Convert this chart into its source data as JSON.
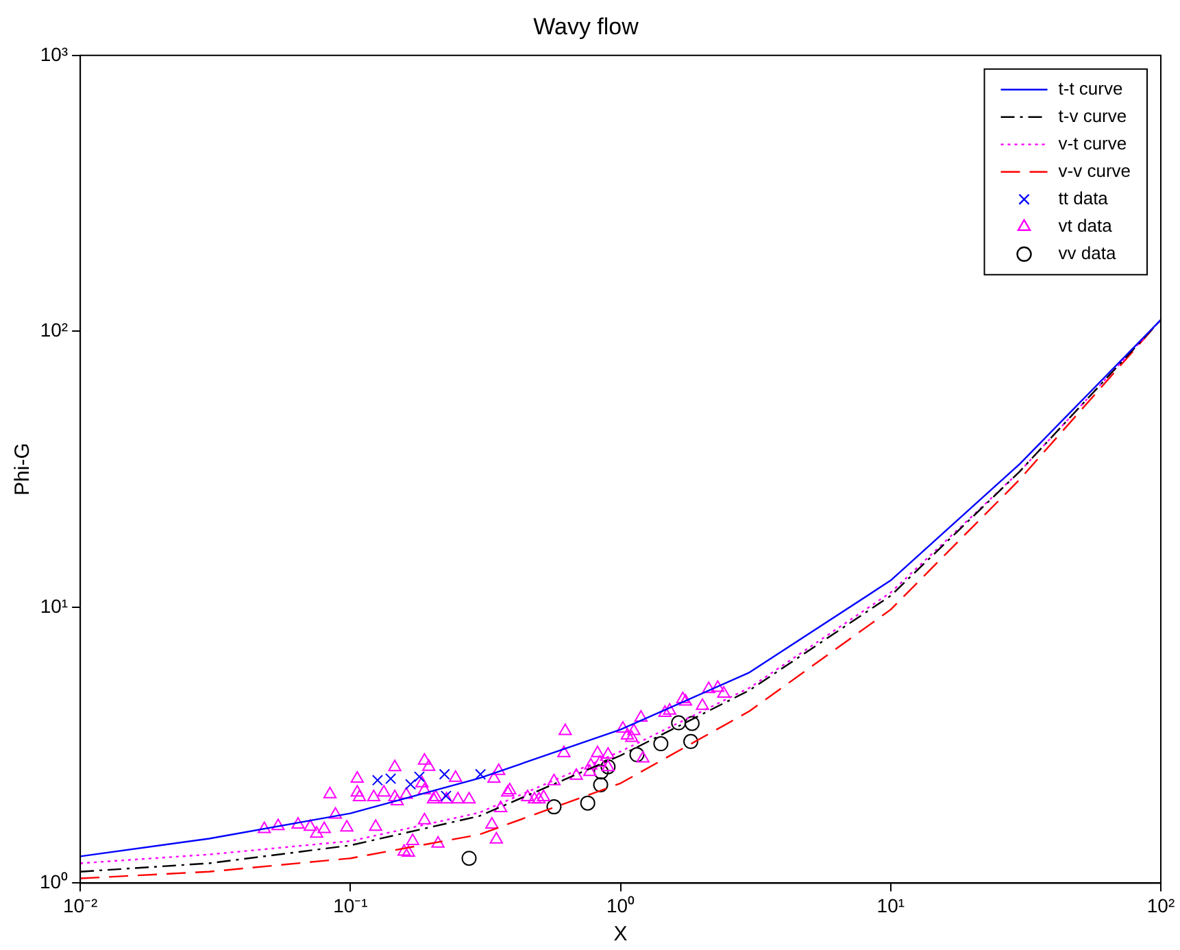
{
  "chart_data": {
    "type": "line",
    "title": "Wavy flow",
    "xlabel": "X",
    "ylabel": "Phi-G",
    "log": "xy",
    "grid": false,
    "legend": "top right",
    "xlim": [
      0.01,
      100
    ],
    "xticks": [
      {
        "value": 0.01,
        "label": "10⁻²"
      },
      {
        "value": 0.1,
        "label": "10⁻¹"
      },
      {
        "value": 1,
        "label": "10⁰"
      },
      {
        "value": 10,
        "label": "10¹"
      },
      {
        "value": 100,
        "label": "10²"
      }
    ],
    "ylim": [
      1,
      1000
    ],
    "yticks": [
      {
        "value": 1,
        "label": "10⁰"
      },
      {
        "value": 10,
        "label": "10¹"
      },
      {
        "value": 100,
        "label": "10²"
      },
      {
        "value": 1000,
        "label": "10³"
      }
    ],
    "series": [
      {
        "name": "t-t curve",
        "color": "#0000ff",
        "line_style": "solid",
        "marker": "none",
        "x": [
          0.01,
          0.03,
          0.1,
          0.3,
          1,
          3,
          10,
          30,
          100
        ],
        "values": [
          1.25,
          1.45,
          1.79,
          2.4,
          3.6,
          5.8,
          12.5,
          33,
          110
        ]
      },
      {
        "name": "t-v curve",
        "color": "#000000",
        "line_style": "dashdot",
        "marker": "none",
        "x": [
          0.01,
          0.03,
          0.1,
          0.3,
          1,
          3,
          10,
          30,
          100
        ],
        "values": [
          1.1,
          1.18,
          1.37,
          1.75,
          2.9,
          5.0,
          11,
          31,
          110
        ]
      },
      {
        "name": "v-t curve",
        "color": "#ff00ff",
        "line_style": "dotted",
        "marker": "none",
        "x": [
          0.01,
          0.03,
          0.1,
          0.3,
          1,
          3,
          10,
          30,
          100
        ],
        "values": [
          1.18,
          1.27,
          1.42,
          1.8,
          3.0,
          5.1,
          11.3,
          31,
          110
        ]
      },
      {
        "name": "v-v curve",
        "color": "#ff0000",
        "line_style": "dashed",
        "marker": "none",
        "x": [
          0.01,
          0.03,
          0.1,
          0.3,
          1,
          3,
          10,
          30,
          100
        ],
        "values": [
          1.04,
          1.1,
          1.23,
          1.5,
          2.3,
          4.2,
          9.8,
          29,
          110
        ]
      },
      {
        "name": "tt data",
        "type": "scatter",
        "color": "#0000ff",
        "marker": "cross",
        "x": [
          0.126,
          0.141,
          0.167,
          0.18,
          0.223,
          0.226,
          0.303
        ],
        "values": [
          2.36,
          2.39,
          2.28,
          2.43,
          2.48,
          2.07,
          2.48
        ]
      },
      {
        "name": "vt data",
        "type": "scatter",
        "color": "#ff00ff",
        "marker": "triangle",
        "x": [
          0.048,
          0.054,
          0.064,
          0.071,
          0.075,
          0.08,
          0.084,
          0.088,
          0.097,
          0.106,
          0.106,
          0.108,
          0.122,
          0.124,
          0.133,
          0.146,
          0.146,
          0.149,
          0.161,
          0.158,
          0.164,
          0.17,
          0.184,
          0.188,
          0.188,
          0.188,
          0.195,
          0.203,
          0.207,
          0.211,
          0.227,
          0.245,
          0.25,
          0.275,
          0.334,
          0.347,
          0.354,
          0.34,
          0.36,
          0.382,
          0.389,
          0.453,
          0.48,
          0.519,
          0.499,
          0.567,
          0.617,
          0.624,
          0.686,
          0.77,
          0.776,
          0.822,
          0.839,
          0.899,
          0.899,
          1.02,
          1.06,
          1.1,
          1.12,
          1.19,
          1.21,
          1.46,
          1.52,
          1.7,
          1.74,
          2.01,
          2.12,
          2.29,
          2.41
        ],
        "values": [
          1.57,
          1.61,
          1.63,
          1.6,
          1.51,
          1.57,
          2.1,
          1.77,
          1.59,
          2.39,
          2.13,
          2.05,
          2.05,
          1.6,
          2.13,
          2.63,
          2.05,
          1.98,
          2.09,
          1.3,
          1.29,
          1.42,
          2.3,
          2.17,
          1.69,
          2.78,
          2.64,
          2.01,
          2.05,
          1.39,
          2.01,
          2.41,
          2.01,
          2.01,
          1.63,
          1.44,
          2.55,
          2.39,
          1.87,
          2.13,
          2.17,
          2.05,
          2.01,
          2.05,
          2.01,
          2.34,
          2.96,
          3.56,
          2.45,
          2.53,
          2.67,
          2.96,
          2.73,
          2.92,
          2.63,
          3.63,
          3.43,
          3.36,
          3.56,
          3.98,
          2.83,
          4.14,
          4.22,
          4.64,
          4.55,
          4.39,
          5.05,
          5.1,
          4.86
        ]
      },
      {
        "name": "vv data",
        "type": "scatter",
        "color": "#000000",
        "marker": "circle",
        "x": [
          0.275,
          0.567,
          0.756,
          0.844,
          0.848,
          0.899,
          1.15,
          1.41,
          1.64,
          1.84,
          1.82
        ],
        "values": [
          1.23,
          1.89,
          1.95,
          2.27,
          2.53,
          2.64,
          2.92,
          3.2,
          3.81,
          3.79,
          3.26
        ]
      }
    ]
  }
}
